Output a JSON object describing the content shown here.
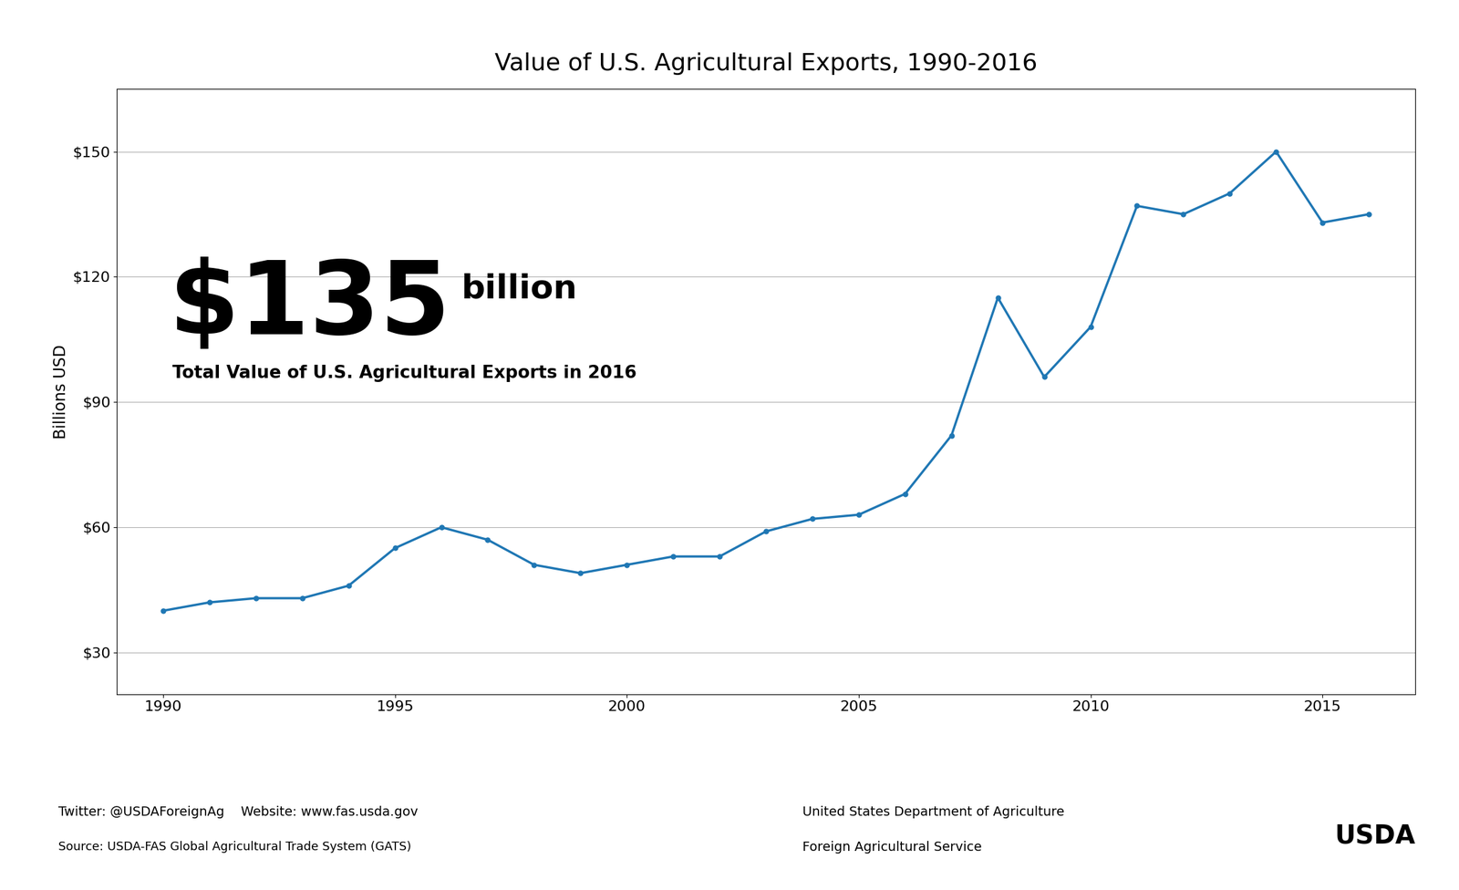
{
  "chart_data": {
    "type": "line",
    "title": "Value of U.S. Agricultural Exports, 1990-2016",
    "ylabel": "Billions USD",
    "x": [
      1990,
      1991,
      1992,
      1993,
      1994,
      1995,
      1996,
      1997,
      1998,
      1999,
      2000,
      2001,
      2002,
      2003,
      2004,
      2005,
      2006,
      2007,
      2008,
      2009,
      2010,
      2011,
      2012,
      2013,
      2014,
      2015,
      2016
    ],
    "values": [
      40,
      42,
      43,
      43,
      46,
      55,
      60,
      57,
      51,
      49,
      51,
      53,
      53,
      59,
      62,
      63,
      68,
      82,
      115,
      96,
      108,
      137,
      135,
      140,
      150,
      133,
      135
    ],
    "marker": "o",
    "xlim": [
      1989,
      2017
    ],
    "xticks": [
      1990,
      1995,
      2000,
      2005,
      2010,
      2015
    ],
    "ylim": [
      20,
      165
    ],
    "yticks": [
      {
        "value": 30,
        "label": "$30"
      },
      {
        "value": 60,
        "label": "$60"
      },
      {
        "value": 90,
        "label": "$90"
      },
      {
        "value": 120,
        "label": "$120"
      },
      {
        "value": 150,
        "label": "$150"
      }
    ],
    "grid": true,
    "annotations": [
      "$135",
      "billion",
      "Total Value of U.S. Agricultural Exports in 2016",
      "Twitter: @USDAForeignAg    Website: www.fas.usda.gov",
      "Source: USDA-FAS Global Agricultural Trade System (GATS)",
      "United States Department of Agriculture",
      "Foreign Agricultural Service",
      "USDA"
    ]
  }
}
